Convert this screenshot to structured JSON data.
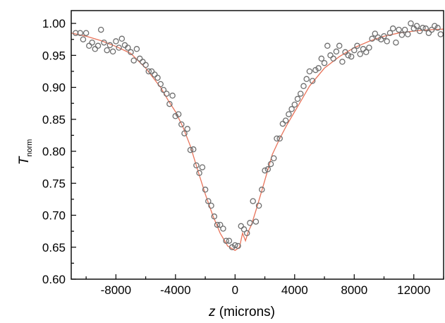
{
  "chart_data": {
    "type": "scatter",
    "xlabel": {
      "italic": "z",
      "rest": " (microns)"
    },
    "ylabel": {
      "italic": "T",
      "subscript": "norm"
    },
    "xlim": [
      -11000,
      14000
    ],
    "ylim": [
      0.6,
      1.02
    ],
    "x_ticks": [
      -8000,
      -4000,
      0,
      4000,
      8000,
      12000
    ],
    "x_tick_labels": [
      "-8000",
      "-4000",
      "0",
      "4000",
      "8000",
      "12000"
    ],
    "y_ticks": [
      0.6,
      0.65,
      0.7,
      0.75,
      0.8,
      0.85,
      0.9,
      0.95,
      1.0
    ],
    "y_tick_labels": [
      "0.60",
      "0.65",
      "0.70",
      "0.75",
      "0.80",
      "0.85",
      "0.90",
      "0.95",
      "1.00"
    ],
    "grid": false,
    "colors": {
      "points": "#6e6e6e",
      "fit": "#e8735a"
    },
    "series": [
      {
        "kind": "points",
        "x": [
          -10700,
          -10400,
          -10200,
          -10000,
          -9800,
          -9600,
          -9400,
          -9200,
          -9000,
          -8800,
          -8600,
          -8400,
          -8200,
          -8000,
          -7800,
          -7600,
          -7400,
          -7200,
          -7000,
          -6800,
          -6600,
          -6400,
          -6200,
          -6000,
          -5800,
          -5600,
          -5400,
          -5200,
          -5000,
          -4800,
          -4600,
          -4400,
          -4200,
          -4000,
          -3800,
          -3600,
          -3400,
          -3200,
          -3000,
          -2800,
          -2600,
          -2400,
          -2200,
          -2000,
          -1800,
          -1600,
          -1400,
          -1200,
          -1000,
          -800,
          -600,
          -400,
          -200,
          0,
          200,
          400,
          600,
          800,
          1000,
          1200,
          1400,
          1600,
          1800,
          2000,
          2200,
          2400,
          2600,
          2800,
          3000,
          3200,
          3400,
          3600,
          3800,
          4000,
          4200,
          4400,
          4600,
          4800,
          5000,
          5200,
          5400,
          5600,
          5800,
          6000,
          6200,
          6400,
          6600,
          6800,
          7000,
          7200,
          7400,
          7600,
          7800,
          8000,
          8200,
          8400,
          8600,
          8800,
          9000,
          9200,
          9400,
          9600,
          9800,
          10000,
          10200,
          10400,
          10600,
          10800,
          11000,
          11200,
          11400,
          11600,
          11800,
          12000,
          12200,
          12400,
          12600,
          12800,
          13000,
          13200,
          13400,
          13600,
          13800
        ],
        "y": [
          0.985,
          0.985,
          0.975,
          0.985,
          0.965,
          0.97,
          0.96,
          0.965,
          0.99,
          0.97,
          0.958,
          0.966,
          0.956,
          0.972,
          0.962,
          0.976,
          0.966,
          0.962,
          0.955,
          0.942,
          0.96,
          0.945,
          0.94,
          0.935,
          0.925,
          0.925,
          0.92,
          0.915,
          0.905,
          0.896,
          0.89,
          0.874,
          0.887,
          0.855,
          0.858,
          0.842,
          0.828,
          0.835,
          0.802,
          0.803,
          0.778,
          0.766,
          0.775,
          0.74,
          0.722,
          0.715,
          0.698,
          0.685,
          0.685,
          0.679,
          0.66,
          0.66,
          0.65,
          0.653,
          0.652,
          0.683,
          0.678,
          0.672,
          0.688,
          0.722,
          0.69,
          0.715,
          0.74,
          0.77,
          0.772,
          0.78,
          0.789,
          0.82,
          0.82,
          0.843,
          0.848,
          0.858,
          0.866,
          0.873,
          0.882,
          0.89,
          0.902,
          0.913,
          0.925,
          0.91,
          0.927,
          0.93,
          0.945,
          0.938,
          0.965,
          0.95,
          0.945,
          0.956,
          0.965,
          0.94,
          0.955,
          0.95,
          0.948,
          0.958,
          0.965,
          0.952,
          0.96,
          0.955,
          0.962,
          0.976,
          0.984,
          0.978,
          0.975,
          0.98,
          0.972,
          0.985,
          0.992,
          0.97,
          0.99,
          0.982,
          0.99,
          0.983,
          1.0,
          0.992,
          0.996,
          0.988,
          0.993,
          0.992,
          0.985,
          0.99,
          0.996,
          0.993,
          0.983
        ]
      },
      {
        "kind": "fit_line",
        "x": [
          -11000,
          -10000,
          -9000,
          -8000,
          -7000,
          -6000,
          -5500,
          -5000,
          -4500,
          -4000,
          -3500,
          -3000,
          -2500,
          -2000,
          -1500,
          -1000,
          -500,
          0,
          300,
          500,
          700,
          900,
          1100,
          1300,
          1500,
          2000,
          2500,
          3000,
          3500,
          4000,
          4500,
          5000,
          6000,
          7000,
          8000,
          9000,
          10000,
          11000,
          12000,
          13000,
          14000
        ],
        "y": [
          0.985,
          0.98,
          0.973,
          0.964,
          0.953,
          0.93,
          0.915,
          0.9,
          0.88,
          0.862,
          0.838,
          0.808,
          0.77,
          0.733,
          0.7,
          0.672,
          0.652,
          0.645,
          0.65,
          0.672,
          0.66,
          0.675,
          0.685,
          0.7,
          0.715,
          0.755,
          0.795,
          0.82,
          0.842,
          0.862,
          0.882,
          0.902,
          0.93,
          0.948,
          0.962,
          0.972,
          0.98,
          0.985,
          0.988,
          0.99,
          0.991
        ]
      }
    ]
  }
}
